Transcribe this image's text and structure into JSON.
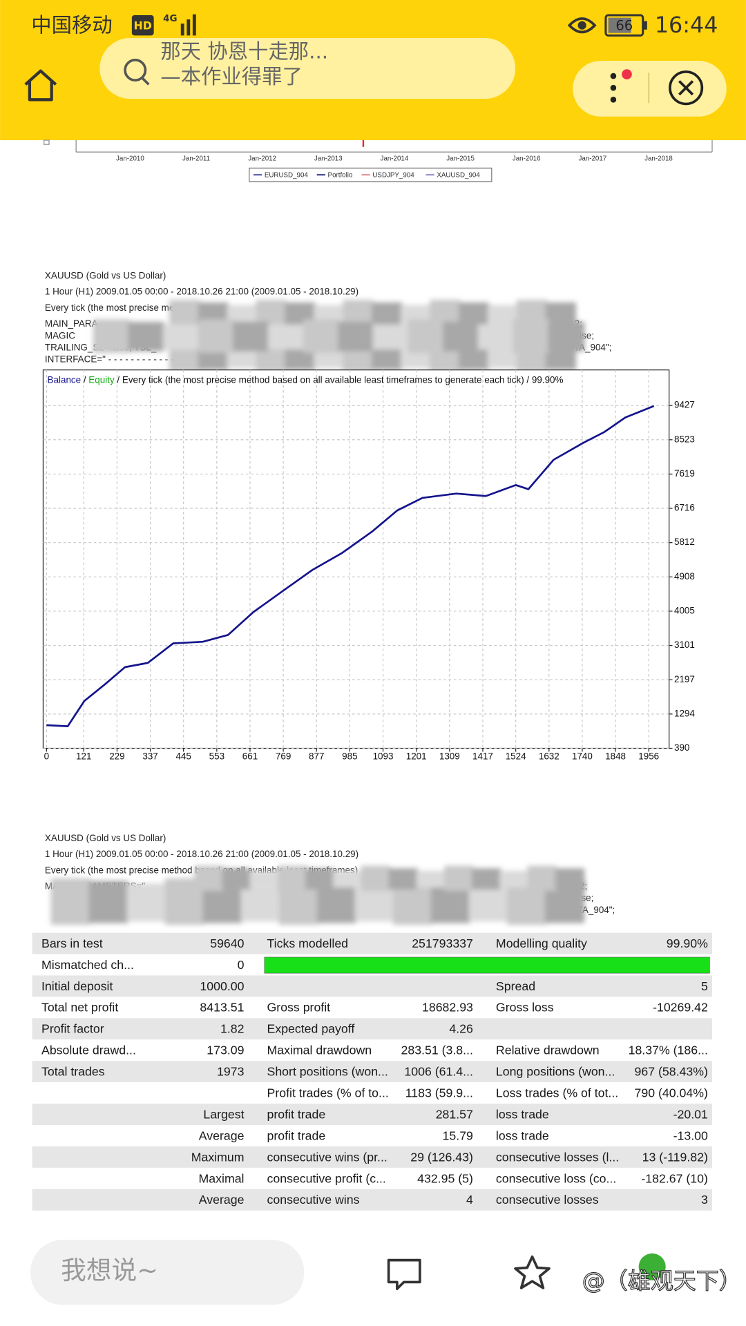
{
  "status_bar": {
    "carrier": "中国移动",
    "hd": "HD",
    "network": "4G",
    "battery": "66",
    "time": "16:44"
  },
  "search": {
    "lines": [
      "那天 协恩十走那...",
      "—本作业得罪了"
    ]
  },
  "top_chart": {
    "xticks": [
      "Jan-2010",
      "Jan-2011",
      "Jan-2012",
      "Jan-2013",
      "Jan-2014",
      "Jan-2015",
      "Jan-2016",
      "Jan-2017",
      "Jan-2018"
    ],
    "legend": [
      {
        "name": "EURUSD_904",
        "color": "#4040a0"
      },
      {
        "name": "Portfolio",
        "color": "#202080"
      },
      {
        "name": "USDJPY_904",
        "color": "#e08080"
      },
      {
        "name": "XAUUSD_904",
        "color": "#8080c0"
      }
    ]
  },
  "report_1": {
    "lines": [
      "XAUUSD (Gold vs US Dollar)",
      "1 Hour (H1) 2009.01.05 00:00 - 2018.10.26 21:00 (2009.01.05 - 2018.10.29)",
      "Every tick (the most precise method"
    ],
    "fragments": [
      "MAIN_PARA",
      "MAGIC",
      "TRAILING_SL=false; TSL_",
      "INTERFACE=\" - - - - - - - - - - - - - -",
      "2;",
      "alse;",
      "ETA_904\";"
    ]
  },
  "chart_data": {
    "type": "line",
    "legend_note": " / Every tick (the most precise method based on all available least timeframes to generate each tick) / 99.90%",
    "legend_extra": [
      {
        "name": "Equity",
        "color": "#11aa11"
      }
    ],
    "x": [
      0,
      69,
      123,
      191,
      255,
      329,
      411,
      508,
      590,
      672,
      768,
      864,
      960,
      1057,
      1139,
      1221,
      1331,
      1427,
      1524,
      1565,
      1647,
      1743,
      1812,
      1880,
      1973
    ],
    "series": [
      {
        "name": "Balance",
        "color": "#14148c",
        "values": [
          1000,
          970,
          1640,
          2085,
          2530,
          2640,
          3155,
          3200,
          3380,
          3980,
          4540,
          5095,
          5540,
          6100,
          6660,
          6990,
          7105,
          7040,
          7330,
          7220,
          7995,
          8440,
          8730,
          9110,
          9413
        ]
      }
    ],
    "xlim": [
      0,
      2022
    ],
    "ylim": [
      390,
      10364
    ],
    "xticks": [
      0,
      121,
      229,
      337,
      445,
      553,
      661,
      769,
      877,
      985,
      1093,
      1201,
      1309,
      1417,
      1524,
      1632,
      1740,
      1848,
      1956
    ],
    "yticks": [
      390,
      1294,
      2197,
      3101,
      4005,
      4908,
      5812,
      6716,
      7619,
      8523,
      9427
    ],
    "grid": true
  },
  "report_2": {
    "lines": [
      "XAUUSD (Gold vs US Dollar)",
      "1 Hour (H1) 2009.01.05 00:00 - 2018.10.26 21:00 (2009.01.05 - 2018.10.29)",
      "Every tick (the most precise method based on all available least timeframes)"
    ],
    "fragments": [
      "MAIN_PARAMETERS=\"",
      "2;",
      "se;",
      "ETA_904\";"
    ]
  },
  "table": {
    "rows": [
      [
        "Bars in test",
        "59640",
        "Ticks modelled",
        "251793337",
        "Modelling quality",
        "99.90%"
      ],
      [
        "Mismatched ch...",
        "0",
        null,
        null,
        null,
        null
      ],
      [
        "Initial deposit",
        "1000.00",
        null,
        null,
        "Spread",
        "5"
      ],
      [
        "Total net profit",
        "8413.51",
        "Gross profit",
        "18682.93",
        "Gross loss",
        "-10269.42"
      ],
      [
        "Profit factor",
        "1.82",
        "Expected payoff",
        "4.26",
        null,
        null
      ],
      [
        "Absolute drawd...",
        "173.09",
        "Maximal drawdown",
        "283.51 (3.8...",
        "Relative drawdown",
        "18.37% (186..."
      ],
      [
        "Total trades",
        "1973",
        "Short positions (won...",
        "1006 (61.4...",
        "Long positions (won...",
        "967 (58.43%)"
      ],
      [
        null,
        null,
        "Profit trades (% of to...",
        "1183 (59.9...",
        "Loss trades (% of tot...",
        "790 (40.04%)"
      ],
      [
        null,
        "Largest",
        "profit trade",
        "281.57",
        "loss trade",
        "-20.01"
      ],
      [
        null,
        "Average",
        "profit trade",
        "15.79",
        "loss trade",
        "-13.00"
      ],
      [
        null,
        "Maximum",
        "consecutive wins (pr...",
        "29 (126.43)",
        "consecutive losses (l...",
        "13 (-119.82)"
      ],
      [
        null,
        "Maximal",
        "consecutive profit (c...",
        "432.95 (5)",
        "consecutive loss (co...",
        "-182.67 (10)"
      ],
      [
        null,
        "Average",
        "consecutive wins",
        "4",
        "consecutive losses",
        "3"
      ]
    ]
  },
  "bottom_bar": {
    "input_placeholder": "我想说~",
    "watermark": "@（雄观天下）"
  }
}
